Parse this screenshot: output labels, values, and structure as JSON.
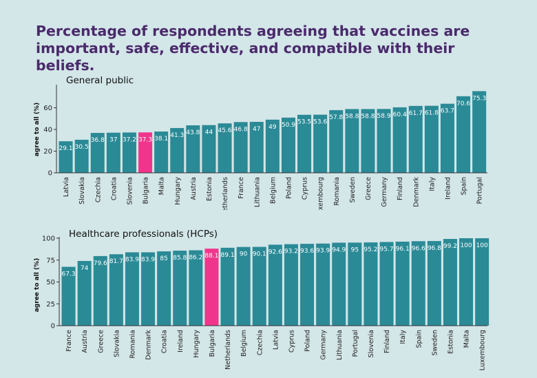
{
  "page": {
    "title": "Percentage of respondents agreeing that vaccines are important, safe, effective, and compatible with their beliefs."
  },
  "colors": {
    "background": "#d3e6e8",
    "bar": "#2a8a96",
    "highlight": "#f0368c",
    "title": "#4a2a6b"
  },
  "chart_data": [
    {
      "type": "bar",
      "title": "General public",
      "xlabel": "",
      "ylabel": "agree to all (%)",
      "ylim": [
        0,
        80
      ],
      "yticks": [
        0,
        20,
        40,
        60
      ],
      "highlight": "Bulgaria",
      "categories": [
        "Latvia",
        "Slovakia",
        "Czechia",
        "Croatia",
        "Slovenia",
        "Bulgaria",
        "Malta",
        "Hungary",
        "Austria",
        "Estonia",
        "Netherlands",
        "France",
        "Lithuania",
        "Belgium",
        "Poland",
        "Cyprus",
        "Luxembourg",
        "Romania",
        "Sweden",
        "Greece",
        "Germany",
        "Finland",
        "Denmark",
        "Italy",
        "Ireland",
        "Spain",
        "Portugal"
      ],
      "values": [
        29.1,
        30.5,
        36.8,
        37,
        37.2,
        37.3,
        38.1,
        41.3,
        43.8,
        44,
        45.6,
        46.8,
        47,
        49,
        50.9,
        53.5,
        53.6,
        57.8,
        58.8,
        58.8,
        58.9,
        60.4,
        61.7,
        61.8,
        63.7,
        70.6,
        75.3
      ]
    },
    {
      "type": "bar",
      "title": "Healthcare professionals (HCPs)",
      "xlabel": "",
      "ylabel": "agree to all (%)",
      "ylim": [
        0,
        100
      ],
      "yticks": [
        0,
        25,
        50,
        75,
        100
      ],
      "highlight": "Bulgaria",
      "categories": [
        "France",
        "Austria",
        "Greece",
        "Slovakia",
        "Romania",
        "Denmark",
        "Croatia",
        "Ireland",
        "Hungary",
        "Bulgaria",
        "Netherlands",
        "Belgium",
        "Czechia",
        "Latvia",
        "Cyprus",
        "Poland",
        "Germany",
        "Lithuania",
        "Portugal",
        "Slovenia",
        "Finland",
        "Italy",
        "Spain",
        "Sweden",
        "Estonia",
        "Malta",
        "Luxembourg"
      ],
      "values": [
        67.3,
        74,
        79.6,
        81.7,
        83.9,
        83.9,
        85,
        85.8,
        86.2,
        88.1,
        89.1,
        90,
        90.1,
        92.6,
        93.2,
        93.6,
        93.9,
        94.9,
        95,
        95.2,
        95.7,
        96.1,
        96.6,
        96.8,
        99.2,
        100,
        100
      ]
    }
  ]
}
